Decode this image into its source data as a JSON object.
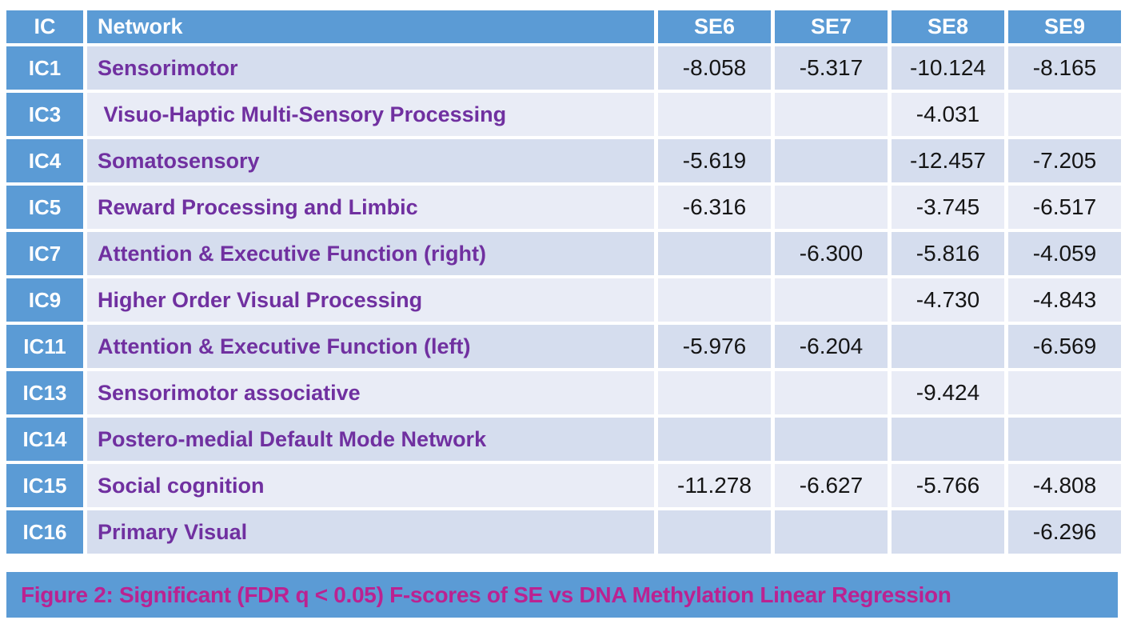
{
  "table": {
    "headers": [
      "IC",
      "Network",
      "SE6",
      "SE7",
      "SE8",
      "SE9"
    ],
    "rows": [
      {
        "ic": "IC1",
        "network": "Sensorimotor",
        "values": [
          "-8.058",
          "-5.317",
          "-10.124",
          "-8.165"
        ]
      },
      {
        "ic": "IC3",
        "network": " Visuo-Haptic Multi-Sensory Processing",
        "values": [
          "",
          "",
          "-4.031",
          ""
        ]
      },
      {
        "ic": "IC4",
        "network": "Somatosensory",
        "values": [
          "-5.619",
          "",
          "-12.457",
          "-7.205"
        ]
      },
      {
        "ic": "IC5",
        "network": "Reward Processing and Limbic",
        "values": [
          "-6.316",
          "",
          "-3.745",
          "-6.517"
        ]
      },
      {
        "ic": "IC7",
        "network": "Attention & Executive Function (right)",
        "values": [
          "",
          "-6.300",
          "-5.816",
          "-4.059"
        ]
      },
      {
        "ic": "IC9",
        "network": "Higher Order Visual Processing",
        "values": [
          "",
          "",
          "-4.730",
          "-4.843"
        ]
      },
      {
        "ic": "IC11",
        "network": "Attention & Executive Function (left)",
        "values": [
          "-5.976",
          "-6.204",
          "",
          "-6.569"
        ]
      },
      {
        "ic": "IC13",
        "network": "Sensorimotor associative",
        "values": [
          "",
          "",
          "-9.424",
          ""
        ]
      },
      {
        "ic": "IC14",
        "network": "Postero-medial Default Mode Network",
        "values": [
          "",
          "",
          "",
          ""
        ]
      },
      {
        "ic": "IC15",
        "network": "Social cognition",
        "values": [
          "-11.278",
          "-6.627",
          "-5.766",
          "-4.808"
        ]
      },
      {
        "ic": "IC16",
        "network": "Primary Visual",
        "values": [
          "",
          "",
          "",
          "-6.296"
        ]
      }
    ]
  },
  "caption": {
    "text": "Figure 2: Significant (FDR q < 0.05) F-scores of SE vs DNA Methylation Linear Regression"
  },
  "colors": {
    "header_blue": "#5B9BD5",
    "band_dark": "#D5DDEE",
    "band_light": "#E9ECF6",
    "network_purple": "#7030A0",
    "caption_magenta": "#BB2291",
    "value_text": "#151515"
  },
  "chart_data": {
    "type": "table",
    "title": "Figure 2: Significant (FDR q < 0.05) F-scores of SE vs DNA Methylation Linear Regression",
    "columns": [
      "IC",
      "Network",
      "SE6",
      "SE7",
      "SE8",
      "SE9"
    ],
    "rows": [
      [
        "IC1",
        "Sensorimotor",
        -8.058,
        -5.317,
        -10.124,
        -8.165
      ],
      [
        "IC3",
        "Visuo-Haptic Multi-Sensory Processing",
        null,
        null,
        -4.031,
        null
      ],
      [
        "IC4",
        "Somatosensory",
        -5.619,
        null,
        -12.457,
        -7.205
      ],
      [
        "IC5",
        "Reward Processing and Limbic",
        -6.316,
        null,
        -3.745,
        -6.517
      ],
      [
        "IC7",
        "Attention & Executive Function (right)",
        null,
        -6.3,
        -5.816,
        -4.059
      ],
      [
        "IC9",
        "Higher Order Visual Processing",
        null,
        null,
        -4.73,
        -4.843
      ],
      [
        "IC11",
        "Attention & Executive Function (left)",
        -5.976,
        -6.204,
        null,
        -6.569
      ],
      [
        "IC13",
        "Sensorimotor associative",
        null,
        null,
        -9.424,
        null
      ],
      [
        "IC14",
        "Postero-medial Default Mode Network",
        null,
        null,
        null,
        null
      ],
      [
        "IC15",
        "Social cognition",
        -11.278,
        -6.627,
        -5.766,
        -4.808
      ],
      [
        "IC16",
        "Primary Visual",
        null,
        null,
        null,
        -6.296
      ]
    ]
  }
}
